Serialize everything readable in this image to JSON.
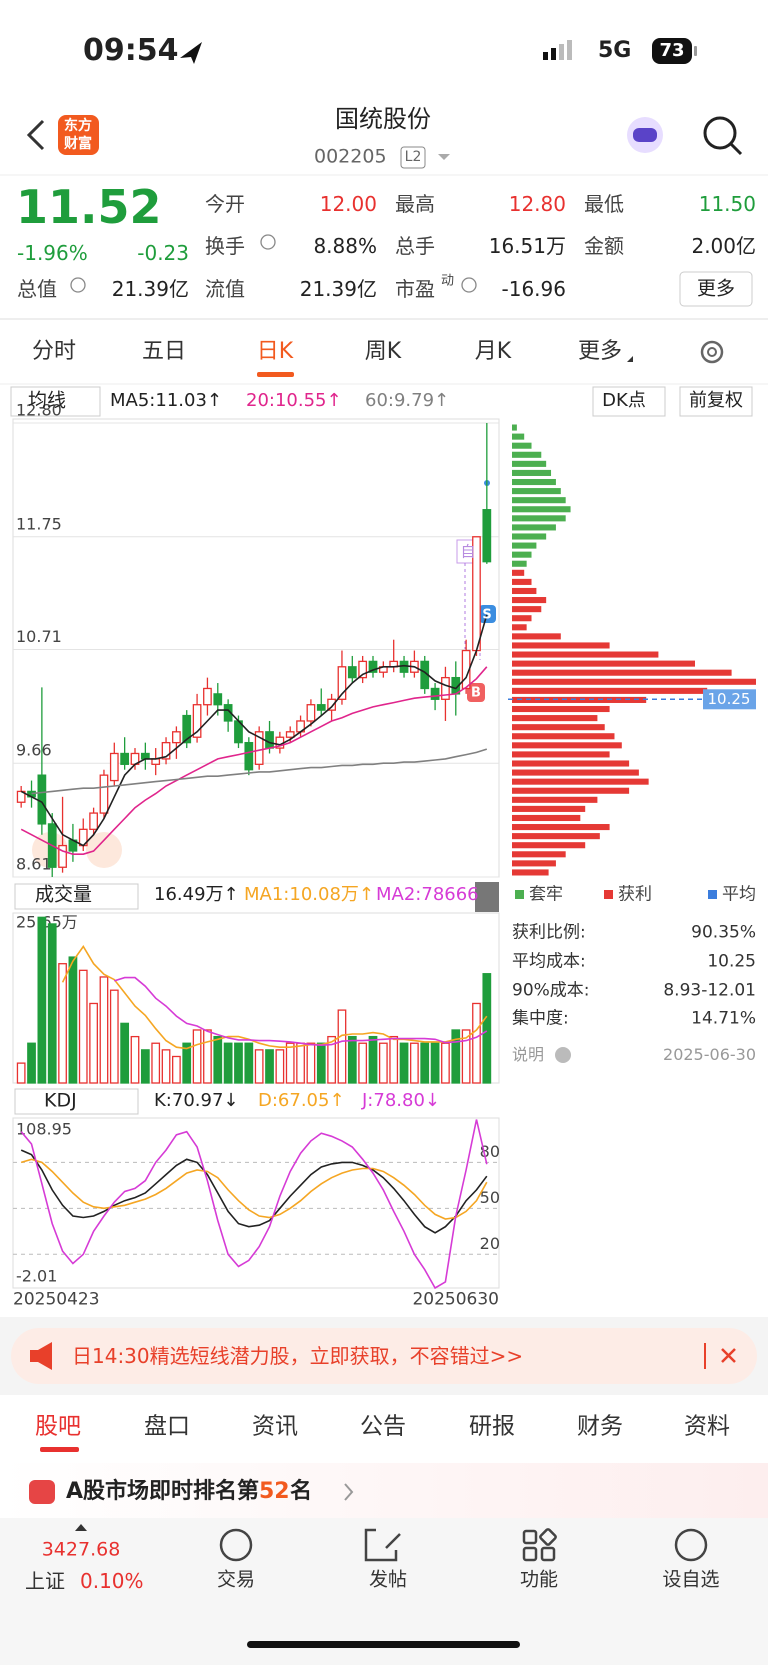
{
  "status": {
    "time": "09:54",
    "network": "5G",
    "battery": "73"
  },
  "header": {
    "logo": [
      "东方",
      "财富"
    ],
    "title": "国统股份",
    "code": "002205",
    "level": "L2"
  },
  "quote": {
    "price": "11.52",
    "change_pct": "-1.96%",
    "change": "-0.23",
    "fields": [
      {
        "label": "今开",
        "value": "12.00",
        "color": "#e8312f"
      },
      {
        "label": "最高",
        "value": "12.80",
        "color": "#e8312f"
      },
      {
        "label": "最低",
        "value": "11.50",
        "color": "#1f9d3c"
      },
      {
        "label": "换手",
        "value": "8.88%"
      },
      {
        "label": "总手",
        "value": "16.51万"
      },
      {
        "label": "金额",
        "value": "2.00亿"
      },
      {
        "label": "总值",
        "value": "21.39亿"
      },
      {
        "label": "流值",
        "value": "21.39亿"
      },
      {
        "label": "市盈",
        "label_sup": "动",
        "value": "-16.96"
      }
    ],
    "more": "更多"
  },
  "tabs": {
    "items": [
      "分时",
      "五日",
      "日K",
      "周K",
      "月K",
      "更多"
    ],
    "selected": 2
  },
  "kline": {
    "ma_selector": "均线",
    "dk": "DK点",
    "adjust": "前复权",
    "ylim": [
      8.61,
      12.8
    ],
    "yticks": [
      {
        "value": 12.8,
        "label": "12.80"
      },
      11.75,
      10.71,
      9.66,
      8.61
    ],
    "up_color": "#e8312f",
    "down_color": "#1f9d3c",
    "candles": [
      [
        9.3,
        9.4,
        9.25,
        9.45
      ],
      [
        9.4,
        9.35,
        9.25,
        9.5
      ],
      [
        9.55,
        9.1,
        9.0,
        10.36
      ],
      [
        9.1,
        8.7,
        8.61,
        9.2
      ],
      [
        8.7,
        8.9,
        8.65,
        9.35
      ],
      [
        8.95,
        8.85,
        8.75,
        9.1
      ],
      [
        8.9,
        9.05,
        8.85,
        9.15
      ],
      [
        9.05,
        9.2,
        9.0,
        9.25
      ],
      [
        9.2,
        9.55,
        9.15,
        9.6
      ],
      [
        9.5,
        9.75,
        9.45,
        9.85
      ],
      [
        9.75,
        9.65,
        9.6,
        9.9
      ],
      [
        9.65,
        9.75,
        9.6,
        9.8
      ],
      [
        9.75,
        9.7,
        9.6,
        9.85
      ],
      [
        9.65,
        9.7,
        9.55,
        9.8
      ],
      [
        9.7,
        9.85,
        9.65,
        9.9
      ],
      [
        9.85,
        9.95,
        9.7,
        10.0
      ],
      [
        10.1,
        9.85,
        9.8,
        10.15
      ],
      [
        9.9,
        10.2,
        9.85,
        10.3
      ],
      [
        10.2,
        10.35,
        10.1,
        10.45
      ],
      [
        10.3,
        10.2,
        10.1,
        10.4
      ],
      [
        10.2,
        10.05,
        9.95,
        10.25
      ],
      [
        10.05,
        9.85,
        9.8,
        10.1
      ],
      [
        9.85,
        9.6,
        9.55,
        9.9
      ],
      [
        9.65,
        9.95,
        9.6,
        10.0
      ],
      [
        9.95,
        9.8,
        9.75,
        10.05
      ],
      [
        9.8,
        9.9,
        9.75,
        9.95
      ],
      [
        9.9,
        9.95,
        9.85,
        10.0
      ],
      [
        9.95,
        10.05,
        9.9,
        10.1
      ],
      [
        10.05,
        10.2,
        10.0,
        10.25
      ],
      [
        10.2,
        10.15,
        10.1,
        10.35
      ],
      [
        10.15,
        10.25,
        10.05,
        10.3
      ],
      [
        10.25,
        10.55,
        10.2,
        10.7
      ],
      [
        10.55,
        10.45,
        10.4,
        10.65
      ],
      [
        10.45,
        10.6,
        10.4,
        10.65
      ],
      [
        10.6,
        10.5,
        10.45,
        10.65
      ],
      [
        10.5,
        10.55,
        10.45,
        10.6
      ],
      [
        10.55,
        10.6,
        10.5,
        10.8
      ],
      [
        10.6,
        10.5,
        10.45,
        10.65
      ],
      [
        10.5,
        10.6,
        10.45,
        10.7
      ],
      [
        10.6,
        10.35,
        10.3,
        10.65
      ],
      [
        10.35,
        10.25,
        10.15,
        10.4
      ],
      [
        10.25,
        10.45,
        10.05,
        10.55
      ],
      [
        10.45,
        10.3,
        10.1,
        10.6
      ],
      [
        10.35,
        10.7,
        10.3,
        10.8
      ],
      [
        10.7,
        11.75,
        10.65,
        11.75
      ],
      [
        12.0,
        11.52,
        11.5,
        12.8
      ]
    ],
    "series": [
      {
        "label": "MA5:11.03↑",
        "color": "#222222",
        "values": [
          9.4,
          9.35,
          9.3,
          9.15,
          9.0,
          8.95,
          8.9,
          9.0,
          9.15,
          9.35,
          9.55,
          9.65,
          9.7,
          9.7,
          9.72,
          9.8,
          9.88,
          9.95,
          10.05,
          10.15,
          10.15,
          10.05,
          9.95,
          9.9,
          9.85,
          9.83,
          9.88,
          9.95,
          10.02,
          10.1,
          10.18,
          10.3,
          10.4,
          10.48,
          10.52,
          10.55,
          10.55,
          10.56,
          10.55,
          10.5,
          10.42,
          10.38,
          10.35,
          10.45,
          10.7,
          11.03
        ]
      },
      {
        "label": "20:10.55↑",
        "color": "#e0258c",
        "values": [
          9.05,
          9.0,
          8.95,
          8.9,
          8.85,
          8.82,
          8.82,
          8.85,
          8.95,
          9.05,
          9.15,
          9.25,
          9.32,
          9.38,
          9.45,
          9.5,
          9.55,
          9.6,
          9.65,
          9.7,
          9.72,
          9.74,
          9.76,
          9.78,
          9.8,
          9.82,
          9.85,
          9.9,
          9.95,
          10.0,
          10.05,
          10.08,
          10.12,
          10.15,
          10.18,
          10.2,
          10.22,
          10.24,
          10.26,
          10.27,
          10.28,
          10.29,
          10.3,
          10.36,
          10.44,
          10.55
        ]
      },
      {
        "label": "60:9.79↑",
        "color": "#808080",
        "values": [
          null,
          9.38,
          9.39,
          9.4,
          9.41,
          9.42,
          9.43,
          9.43,
          9.44,
          9.45,
          9.46,
          9.47,
          9.48,
          9.49,
          9.5,
          9.51,
          9.52,
          9.53,
          9.54,
          9.54,
          9.55,
          9.56,
          9.57,
          9.58,
          9.58,
          9.59,
          9.6,
          9.61,
          9.62,
          9.62,
          9.63,
          9.64,
          9.64,
          9.65,
          9.65,
          9.66,
          9.66,
          9.67,
          9.67,
          9.68,
          9.69,
          9.7,
          9.72,
          9.74,
          9.76,
          9.79
        ]
      }
    ],
    "markers": [
      "自",
      "S",
      "B"
    ]
  },
  "volume": {
    "selector": "成交量",
    "current": "16.49万↑",
    "ylim": [
      0,
      25.65
    ],
    "yticks": [
      {
        "value": 25.65,
        "label": "25.65万"
      }
    ],
    "values": [
      3,
      6,
      25,
      24,
      18,
      19,
      17,
      12,
      16,
      14,
      9,
      7,
      5,
      6,
      5,
      4,
      6,
      8,
      8,
      7,
      6,
      6,
      6,
      5,
      5,
      5,
      6,
      6,
      6,
      6,
      7,
      11,
      7,
      6,
      7,
      6,
      7,
      6,
      6,
      6,
      6,
      6,
      8,
      8,
      12,
      16.49
    ],
    "series": [
      {
        "label": "MA1:10.08万↑",
        "color": "#f5a623",
        "values": [
          null,
          null,
          null,
          null,
          15.2,
          18.4,
          20.6,
          18.0,
          16.4,
          15.6,
          13.6,
          11.6,
          10.2,
          8.2,
          6.4,
          5.4,
          5.2,
          5.8,
          6.2,
          6.6,
          7.0,
          7.0,
          6.6,
          6.0,
          5.6,
          5.4,
          5.4,
          5.6,
          5.8,
          5.8,
          6.2,
          7.2,
          7.4,
          7.4,
          7.6,
          7.4,
          6.6,
          6.6,
          6.4,
          6.2,
          6.2,
          6.2,
          6.6,
          6.8,
          8.0,
          10.08
        ]
      },
      {
        "label": "MA2:78666",
        "color": "#d63bd6",
        "values": [
          null,
          null,
          null,
          null,
          null,
          null,
          null,
          null,
          null,
          15.4,
          15.9,
          15.9,
          14.6,
          12.8,
          11.6,
          10.1,
          9.0,
          8.6,
          7.8,
          7.3,
          6.8,
          6.5,
          6.5,
          6.4,
          6.4,
          6.3,
          6.2,
          6.0,
          5.8,
          5.7,
          5.8,
          6.3,
          6.4,
          6.4,
          6.5,
          6.6,
          6.7,
          6.7,
          6.7,
          6.7,
          6.6,
          6.1,
          6.2,
          6.4,
          6.9,
          7.8666
        ]
      }
    ]
  },
  "kdj": {
    "selector": "KDJ",
    "ylim": [
      -2.01,
      108.95
    ],
    "yticks": [
      80,
      50,
      20
    ],
    "series": [
      {
        "label": "K:70.97↓",
        "color": "#222222",
        "values": [
          88,
          85,
          75,
          62,
          52,
          45,
          44,
          45,
          48,
          52,
          55,
          57,
          60,
          66,
          72,
          78,
          82,
          80,
          72,
          60,
          48,
          40,
          38,
          39,
          42,
          50,
          58,
          65,
          72,
          77,
          79,
          80,
          80,
          78,
          75,
          70,
          63,
          55,
          46,
          38,
          34,
          38,
          45,
          55,
          62,
          70.97
        ]
      },
      {
        "label": "D:67.05↑",
        "color": "#f5a623",
        "values": [
          80,
          82,
          80,
          74,
          67,
          60,
          54,
          51,
          50,
          51,
          52,
          54,
          56,
          59,
          63,
          68,
          73,
          75,
          74,
          70,
          62,
          55,
          49,
          45,
          44,
          46,
          50,
          55,
          61,
          66,
          70,
          73,
          75,
          76,
          76,
          74,
          70,
          65,
          59,
          52,
          46,
          43,
          44,
          48,
          55,
          67.05
        ]
      },
      {
        "label": "J:78.80↓",
        "color": "#d63bd6",
        "values": [
          100,
          92,
          66,
          40,
          22,
          14,
          20,
          35,
          45,
          54,
          61,
          63,
          68,
          80,
          88,
          98,
          100,
          90,
          68,
          42,
          20,
          12,
          16,
          25,
          38,
          58,
          74,
          86,
          94,
          99,
          97,
          94,
          90,
          82,
          73,
          62,
          48,
          35,
          20,
          10,
          -2,
          2,
          45,
          75,
          108,
          78.8
        ]
      }
    ],
    "dates": [
      "20250423",
      "20250630"
    ]
  },
  "chips": {
    "xlim": [
      0,
      100
    ],
    "series": [
      {
        "name": "套牢",
        "color": "#4caf50",
        "values": [
          2,
          5,
          8,
          12,
          14,
          16,
          18,
          20,
          22,
          24,
          22,
          18,
          14,
          10,
          8,
          6,
          null,
          null,
          null,
          null,
          null,
          null,
          null,
          null,
          null,
          null,
          null,
          null,
          null,
          null,
          null,
          null,
          null,
          null,
          null,
          null,
          null,
          null,
          null,
          null,
          null,
          null,
          null,
          null,
          null,
          null,
          null,
          null,
          null,
          null
        ]
      },
      {
        "name": "获利",
        "color": "#e53935",
        "values": [
          null,
          null,
          null,
          null,
          null,
          null,
          null,
          null,
          null,
          null,
          null,
          null,
          null,
          null,
          null,
          null,
          5,
          8,
          10,
          14,
          12,
          8,
          6,
          20,
          40,
          60,
          75,
          90,
          100,
          80,
          55,
          40,
          35,
          38,
          42,
          45,
          40,
          48,
          52,
          56,
          48,
          35,
          30,
          28,
          40,
          36,
          30,
          22,
          18,
          15
        ]
      }
    ],
    "average_name": "平均",
    "average_color": "#3b7ddd",
    "average": 10.25,
    "info": [
      {
        "label": "获利比例:",
        "value": "90.35%"
      },
      {
        "label": "平均成本:"
      },
      {
        "label": "90%成本:",
        "value": "8.93-12.01"
      },
      {
        "label": "集中度:",
        "value": "14.71%"
      }
    ],
    "note": "说明",
    "date": "2025-06-30"
  },
  "banner": {
    "text": "日14:30精选短线潜力股，立即获取，不容错过>>"
  },
  "bottom_tabs": {
    "items": [
      "股吧",
      "盘口",
      "资讯",
      "公告",
      "研报",
      "财务",
      "资料"
    ],
    "selected": 0
  },
  "rank": {
    "prefix": "A股市场即时排名第",
    "number": "52",
    "suffix": "名"
  },
  "nav": {
    "index_value": "3427.68",
    "index_name": "上证",
    "index_change": "0.10%",
    "items": [
      "交易",
      "发帖",
      "功能",
      "设自选"
    ]
  }
}
